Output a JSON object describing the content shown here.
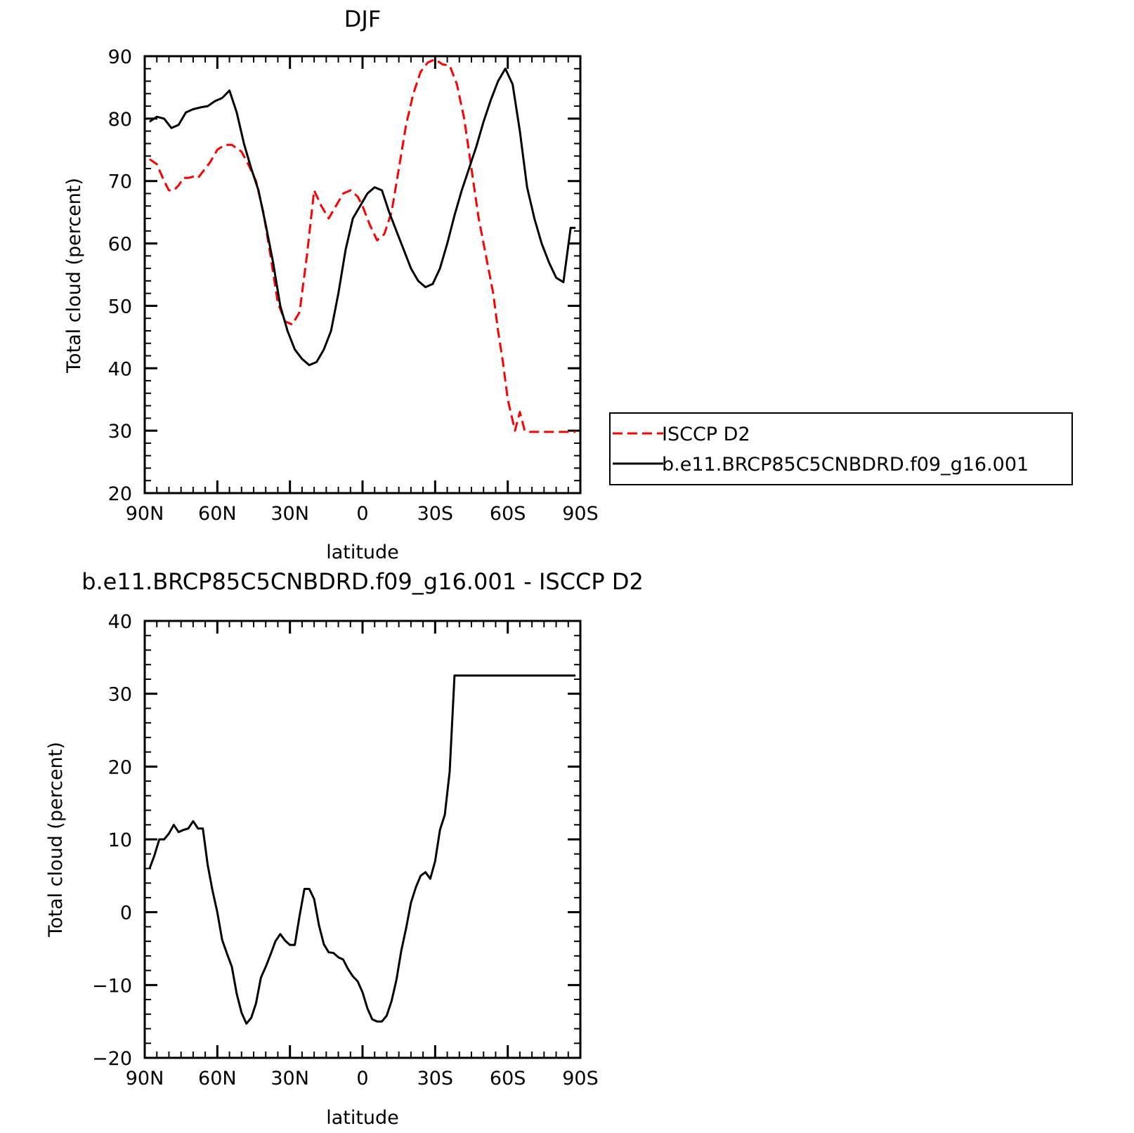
{
  "colors": {
    "obs": "#ff0000",
    "model": "#000000",
    "diff": "#000000",
    "frame": "#000000"
  },
  "chart_data": [
    {
      "type": "line",
      "title": "DJF",
      "xlabel": "latitude",
      "ylabel": "Total cloud (percent)",
      "xlim": [
        90,
        -90
      ],
      "ylim": [
        20,
        90
      ],
      "xticks": [
        {
          "value": 90,
          "label": "90N"
        },
        {
          "value": 60,
          "label": "60N"
        },
        {
          "value": 30,
          "label": "30N"
        },
        {
          "value": 0,
          "label": "0"
        },
        {
          "value": -30,
          "label": "30S"
        },
        {
          "value": -60,
          "label": "60S"
        },
        {
          "value": -90,
          "label": "90S"
        }
      ],
      "yticks": [
        {
          "value": 20,
          "label": "20"
        },
        {
          "value": 30,
          "label": "30"
        },
        {
          "value": 40,
          "label": "40"
        },
        {
          "value": 50,
          "label": "50"
        },
        {
          "value": 60,
          "label": "60"
        },
        {
          "value": 70,
          "label": "70"
        },
        {
          "value": 80,
          "label": "80"
        },
        {
          "value": 90,
          "label": "90"
        }
      ],
      "legend": "right",
      "series": [
        {
          "name": "ISCCP D2",
          "style": "dashed",
          "color": "#ff0000",
          "x": [
            88,
            85,
            82,
            80,
            78,
            76,
            74,
            72,
            70,
            68,
            66,
            63,
            60,
            57,
            54,
            50,
            47,
            44,
            41,
            38,
            35,
            32,
            29,
            26,
            23,
            20,
            17,
            14,
            11,
            8,
            5,
            2,
            0,
            -3,
            -6,
            -9,
            -12,
            -15,
            -18,
            -21,
            -24,
            -27,
            -30,
            -33,
            -36,
            -39,
            -42,
            -45,
            -48,
            -51,
            -54,
            -56,
            -58,
            -60,
            -63,
            -65,
            -67,
            -69,
            -71,
            -73,
            -75,
            -77,
            -79,
            -81,
            -83,
            -85,
            -87,
            -88
          ],
          "y": [
            73.5,
            72.7,
            70.0,
            68.5,
            68.5,
            69.3,
            70.5,
            70.5,
            70.7,
            70.5,
            71.5,
            73.0,
            75.0,
            75.8,
            75.8,
            74.7,
            72.5,
            70.0,
            65.0,
            58.0,
            50.5,
            47.5,
            47.0,
            49.0,
            58.0,
            68.5,
            66.0,
            64.0,
            66.0,
            68.0,
            68.5,
            67.5,
            66.0,
            63.0,
            60.5,
            61.5,
            65.0,
            72.0,
            79.0,
            84.0,
            87.5,
            89.0,
            89.5,
            88.7,
            88.5,
            85.5,
            80.0,
            72.0,
            64.0,
            58.0,
            52.0,
            46.0,
            41.0,
            35.0,
            30.0,
            33.0,
            30.0,
            29.8,
            29.8,
            29.8,
            29.8,
            29.8,
            29.8,
            29.8,
            29.8,
            29.8,
            29.8,
            29.8
          ]
        },
        {
          "name": "b.e11.BRCP85C5CNBDRD.f09_g16.001",
          "style": "solid",
          "color": "#000000",
          "x": [
            88,
            85,
            82,
            79,
            76,
            73,
            70,
            67,
            64,
            61,
            58,
            55,
            52,
            49,
            46,
            43,
            40,
            37,
            34,
            31,
            28,
            25,
            22,
            19,
            16,
            13,
            10,
            7,
            4,
            1,
            -2,
            -5,
            -8,
            -11,
            -14,
            -17,
            -20,
            -23,
            -26,
            -29,
            -32,
            -35,
            -38,
            -41,
            -44,
            -47,
            -50,
            -53,
            -56,
            -59,
            -62,
            -65,
            -68,
            -71,
            -74,
            -77,
            -80,
            -83,
            -86,
            -88
          ],
          "y": [
            79.5,
            80.3,
            80.0,
            78.5,
            79.0,
            81.0,
            81.5,
            81.8,
            82.0,
            82.8,
            83.3,
            84.5,
            81.0,
            76.0,
            72.0,
            68.5,
            63.0,
            57.0,
            50.0,
            46.0,
            43.0,
            41.5,
            40.5,
            41.0,
            43.0,
            46.0,
            52.0,
            59.0,
            64.0,
            66.0,
            68.0,
            69.0,
            68.5,
            65.0,
            62.0,
            59.0,
            56.0,
            54.0,
            53.0,
            53.5,
            56.0,
            60.0,
            64.5,
            68.5,
            72.0,
            75.5,
            79.5,
            83.0,
            86.0,
            88.0,
            85.5,
            78.0,
            69.0,
            64.0,
            60.0,
            57.0,
            54.5,
            53.8,
            62.5,
            62.5
          ]
        }
      ]
    },
    {
      "type": "line",
      "title": "b.e11.BRCP85C5CNBDRD.f09_g16.001 - ISCCP D2",
      "xlabel": "latitude",
      "ylabel": "Total cloud (percent)",
      "xlim": [
        90,
        -90
      ],
      "ylim": [
        -20,
        40
      ],
      "xticks": [
        {
          "value": 90,
          "label": "90N"
        },
        {
          "value": 60,
          "label": "60N"
        },
        {
          "value": 30,
          "label": "30N"
        },
        {
          "value": 0,
          "label": "0"
        },
        {
          "value": -30,
          "label": "30S"
        },
        {
          "value": -60,
          "label": "60S"
        },
        {
          "value": -90,
          "label": "90S"
        }
      ],
      "yticks": [
        {
          "value": -20,
          "label": "−20"
        },
        {
          "value": -10,
          "label": "−10"
        },
        {
          "value": 0,
          "label": "0"
        },
        {
          "value": 10,
          "label": "10"
        },
        {
          "value": 20,
          "label": "20"
        },
        {
          "value": 30,
          "label": "30"
        },
        {
          "value": 40,
          "label": "40"
        }
      ],
      "series": [
        {
          "style": "solid",
          "color": "#000000",
          "x": [
            88,
            86,
            84,
            82,
            80,
            78,
            76,
            74,
            72,
            70,
            68,
            66,
            64,
            62,
            60,
            58,
            56,
            54,
            52,
            50,
            48,
            46,
            44,
            42,
            40,
            38,
            36,
            34,
            32,
            30,
            28,
            26,
            24,
            22,
            20,
            18,
            16,
            14,
            12,
            10,
            8,
            6,
            4,
            2,
            0,
            -2,
            -4,
            -6,
            -8,
            -10,
            -12,
            -14,
            -16,
            -18,
            -20,
            -22,
            -24,
            -26,
            -28,
            -30,
            -32,
            -34,
            -36,
            -38,
            -40,
            -42,
            -44,
            -46,
            -48,
            -50,
            -52,
            -54,
            -56,
            -58,
            -60,
            -62,
            -64,
            -66,
            -68,
            -70,
            -72,
            -74,
            -76,
            -78,
            -80,
            -82,
            -84,
            -86,
            -88
          ],
          "y": [
            6.0,
            7.8,
            10.0,
            10.0,
            10.8,
            12.0,
            11.0,
            11.3,
            11.5,
            12.5,
            11.5,
            11.5,
            6.5,
            3.0,
            0.0,
            -3.8,
            -5.7,
            -7.5,
            -11.2,
            -13.8,
            -15.3,
            -14.5,
            -12.5,
            -9.0,
            -7.5,
            -5.8,
            -4.0,
            -3.0,
            -3.9,
            -4.5,
            -4.5,
            -0.5,
            3.2,
            3.2,
            1.8,
            -1.8,
            -4.4,
            -5.5,
            -5.6,
            -6.2,
            -6.5,
            -7.8,
            -8.8,
            -9.5,
            -11.0,
            -13.2,
            -14.7,
            -15.0,
            -15.0,
            -14.2,
            -12.2,
            -9.3,
            -5.3,
            -2.2,
            1.3,
            3.4,
            5.0,
            5.5,
            4.6,
            7.0,
            11.3,
            13.4,
            19.3,
            32.5,
            32.5,
            32.5,
            32.5,
            32.5,
            32.5,
            32.5,
            32.5,
            32.5,
            32.5,
            32.5,
            32.5,
            32.5,
            32.5,
            32.5,
            32.5,
            32.5,
            32.5,
            32.5,
            32.5,
            32.5,
            32.5,
            32.5,
            32.5,
            32.5,
            32.5
          ]
        }
      ]
    }
  ]
}
